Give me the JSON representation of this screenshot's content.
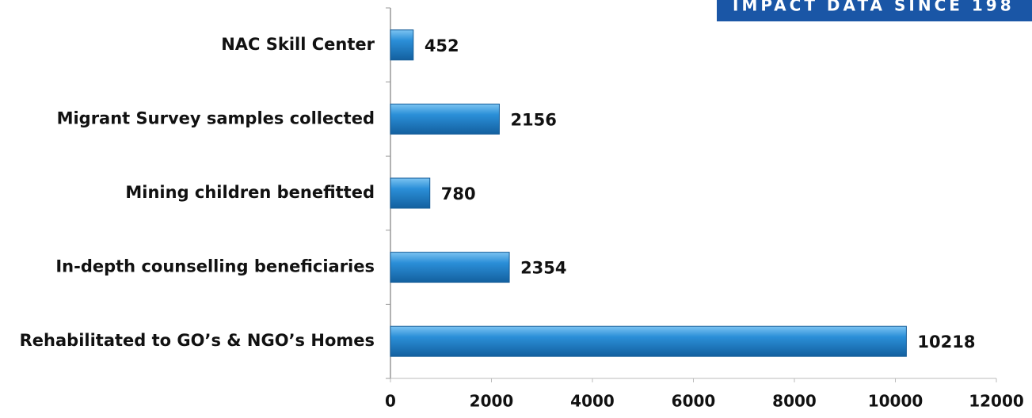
{
  "chart_data": {
    "type": "bar",
    "orientation": "horizontal",
    "banner": "IMPACT DATA SINCE 198",
    "categories": [
      "NAC Skill Center",
      "Migrant Survey samples collected",
      "Mining children benefitted",
      "In-depth counselling beneficiaries",
      "Rehabilitated to GO’s & NGO’s Homes"
    ],
    "values": [
      452,
      2156,
      780,
      2354,
      10218
    ],
    "color": "#2b8fd8",
    "xlim": [
      0,
      12000
    ],
    "xticks": [
      0,
      2000,
      4000,
      6000,
      8000,
      10000,
      12000
    ],
    "grid": false
  }
}
